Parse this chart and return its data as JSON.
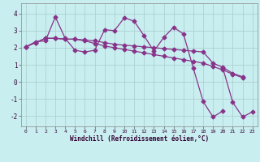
{
  "background_color": "#c8eef0",
  "grid_color": "#b0d8da",
  "line_color": "#883388",
  "xlabel": "Windchill (Refroidissement éolien,°C)",
  "xlim": [
    -0.5,
    23.5
  ],
  "ylim": [
    -2.6,
    4.6
  ],
  "yticks": [
    -2,
    -1,
    0,
    1,
    2,
    3,
    4
  ],
  "xticks": [
    0,
    1,
    2,
    3,
    4,
    5,
    6,
    7,
    8,
    9,
    10,
    11,
    12,
    13,
    14,
    15,
    16,
    17,
    18,
    19,
    20,
    21,
    22,
    23
  ],
  "line1_x": [
    0,
    1,
    2,
    3,
    4,
    5,
    6,
    7,
    8,
    9,
    10,
    11,
    12,
    13,
    14,
    15,
    16,
    17,
    18,
    19,
    20,
    21,
    22,
    23
  ],
  "line1_y": [
    2.05,
    2.35,
    2.4,
    3.8,
    2.55,
    1.85,
    1.75,
    1.85,
    3.05,
    3.0,
    3.75,
    3.55,
    2.7,
    1.8,
    2.6,
    3.2,
    2.8,
    0.8,
    -1.15,
    -2.05,
    -1.7,
    null,
    null,
    null
  ],
  "line2_x": [
    0,
    1,
    2,
    3,
    4,
    5,
    6,
    7,
    8,
    9,
    10,
    11,
    12,
    13,
    14,
    15,
    16,
    17,
    18,
    19,
    20,
    21,
    22,
    23
  ],
  "line2_y": [
    2.05,
    2.3,
    2.55,
    2.55,
    2.5,
    2.5,
    2.45,
    2.4,
    2.3,
    2.2,
    2.15,
    2.1,
    2.05,
    2.0,
    1.95,
    1.9,
    1.85,
    1.8,
    1.75,
    1.1,
    0.85,
    0.5,
    0.3,
    null
  ],
  "line3_x": [
    0,
    1,
    2,
    3,
    4,
    5,
    6,
    7,
    8,
    9,
    10,
    11,
    12,
    13,
    14,
    15,
    16,
    17,
    18,
    19,
    20,
    21,
    22,
    23
  ],
  "line3_y": [
    2.05,
    2.3,
    2.55,
    2.55,
    2.5,
    2.5,
    2.4,
    2.25,
    2.1,
    2.0,
    1.9,
    1.8,
    1.7,
    1.6,
    1.5,
    1.4,
    1.3,
    1.2,
    1.1,
    0.9,
    0.7,
    0.45,
    0.25,
    null
  ],
  "line4_x": [
    0,
    1,
    2,
    3,
    4,
    5,
    6,
    7,
    8,
    9,
    10,
    11,
    12,
    13,
    14,
    15,
    16,
    17,
    18,
    19,
    20,
    21,
    22,
    23
  ],
  "line4_y": [
    null,
    null,
    null,
    null,
    null,
    null,
    null,
    null,
    null,
    null,
    null,
    null,
    null,
    null,
    null,
    null,
    null,
    null,
    null,
    null,
    0.8,
    -1.2,
    -2.05,
    -1.75
  ]
}
